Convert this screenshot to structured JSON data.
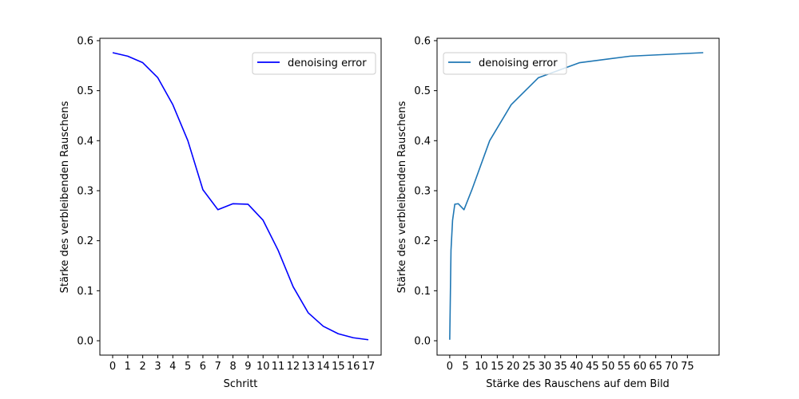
{
  "chart_data": [
    {
      "type": "line",
      "title": "",
      "xlabel": "Schritt",
      "ylabel": "Stärke des verbleibenden Rauschens",
      "x": [
        0,
        1,
        2,
        3,
        4,
        5,
        6,
        7,
        8,
        9,
        10,
        11,
        12,
        13,
        14,
        15,
        16,
        17
      ],
      "xticks": [
        0,
        1,
        2,
        3,
        4,
        5,
        6,
        7,
        8,
        9,
        10,
        11,
        12,
        13,
        14,
        15,
        16,
        17
      ],
      "xlim": [
        -0.85,
        17.85
      ],
      "yticks": [
        0.0,
        0.1,
        0.2,
        0.3,
        0.4,
        0.5,
        0.6
      ],
      "ytick_labels": [
        "0.0",
        "0.1",
        "0.2",
        "0.3",
        "0.4",
        "0.5",
        "0.6"
      ],
      "ylim": [
        -0.0287,
        0.6047
      ],
      "grid": false,
      "legend_position": "top-right",
      "series": [
        {
          "name": "denoising error",
          "color": "#0000ff",
          "values": [
            0.576,
            0.569,
            0.556,
            0.526,
            0.472,
            0.4,
            0.302,
            0.262,
            0.274,
            0.273,
            0.241,
            0.181,
            0.108,
            0.056,
            0.029,
            0.014,
            0.006,
            0.002
          ]
        }
      ]
    },
    {
      "type": "line",
      "title": "",
      "xlabel": "Stärke des Rauschens auf dem Bild",
      "ylabel": "Stärke des verbleibenden Rauschens",
      "xticks": [
        0,
        5,
        10,
        15,
        20,
        25,
        30,
        35,
        40,
        45,
        50,
        55,
        60,
        65,
        70,
        75
      ],
      "xlim": [
        -4,
        85
      ],
      "yticks": [
        0.0,
        0.1,
        0.2,
        0.3,
        0.4,
        0.5,
        0.6
      ],
      "ytick_labels": [
        "0.0",
        "0.1",
        "0.2",
        "0.3",
        "0.4",
        "0.5",
        "0.6"
      ],
      "ylim": [
        -0.0287,
        0.6047
      ],
      "grid": false,
      "legend_position": "top-left",
      "series": [
        {
          "name": "denoising error",
          "color": "#1f77b4",
          "x": [
            0.0,
            0.4,
            0.9,
            1.6,
            2.7,
            4.5,
            7.0,
            12.6,
            19.4,
            28.0,
            41.0,
            57.0,
            80.0
          ],
          "values": [
            0.002,
            0.181,
            0.241,
            0.273,
            0.274,
            0.262,
            0.302,
            0.4,
            0.472,
            0.526,
            0.556,
            0.569,
            0.576
          ]
        }
      ]
    }
  ]
}
